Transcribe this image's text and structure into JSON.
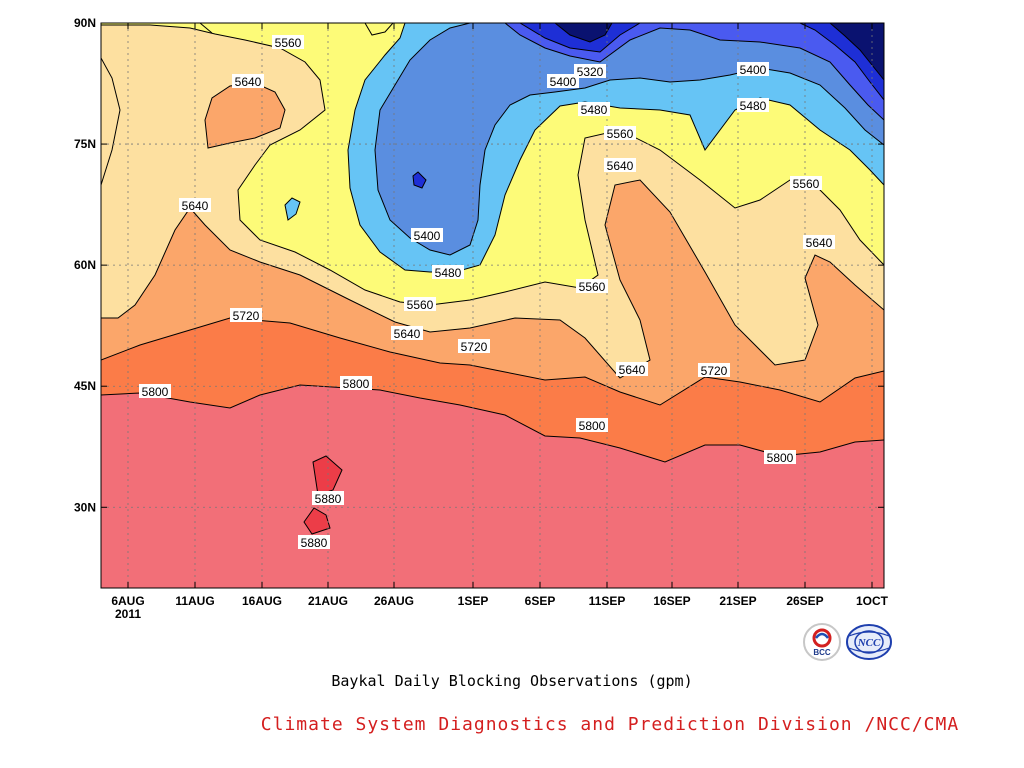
{
  "chart_data": {
    "type": "contour",
    "title": "Baykal Daily Blocking Observations (gpm)",
    "x_ticks": [
      "6AUG\n2011",
      "11AUG",
      "16AUG",
      "21AUG",
      "26AUG",
      "1SEP",
      "6SEP",
      "11SEP",
      "16SEP",
      "21SEP",
      "26SEP",
      "1OCT"
    ],
    "y_ticks": [
      "90N",
      "75N",
      "60N",
      "45N",
      "30N"
    ],
    "x_range": [
      "2011-08-06",
      "2011-10-01"
    ],
    "y_range": [
      20,
      90
    ],
    "grid": true,
    "contour_levels": [
      5320,
      5400,
      5480,
      5560,
      5640,
      5720,
      5800,
      5880
    ],
    "fill_colors": {
      "below_5240": "#0a1270",
      "5240_5320": "#1e2fd6",
      "5320_5400": "#4a5af0",
      "5400_5480": "#5a8ee0",
      "5480_5560": "#66c4f5",
      "5560_5640": "#fdfb78",
      "5640_5720": "#fde0a0",
      "5720_5800": "#fba66a",
      "5800_5880": "#fb7c48",
      "above_5880_a": "#f26f78",
      "above_5880_b": "#ec3d48"
    },
    "contour_labels": [
      "5320",
      "5400",
      "5400",
      "5400",
      "5480",
      "5480",
      "5480",
      "5560",
      "5560",
      "5560",
      "5560",
      "5560",
      "5640",
      "5640",
      "5640",
      "5640",
      "5640",
      "5640",
      "5720",
      "5720",
      "5720",
      "5800",
      "5800",
      "5800",
      "5800",
      "5880",
      "5880"
    ]
  },
  "subtitle": "Baykal Daily Blocking Observations (gpm)",
  "credit": "Climate System Diagnostics and Prediction Division /NCC/CMA",
  "logos": {
    "bcc": "BCC",
    "ncc": "NCC"
  }
}
